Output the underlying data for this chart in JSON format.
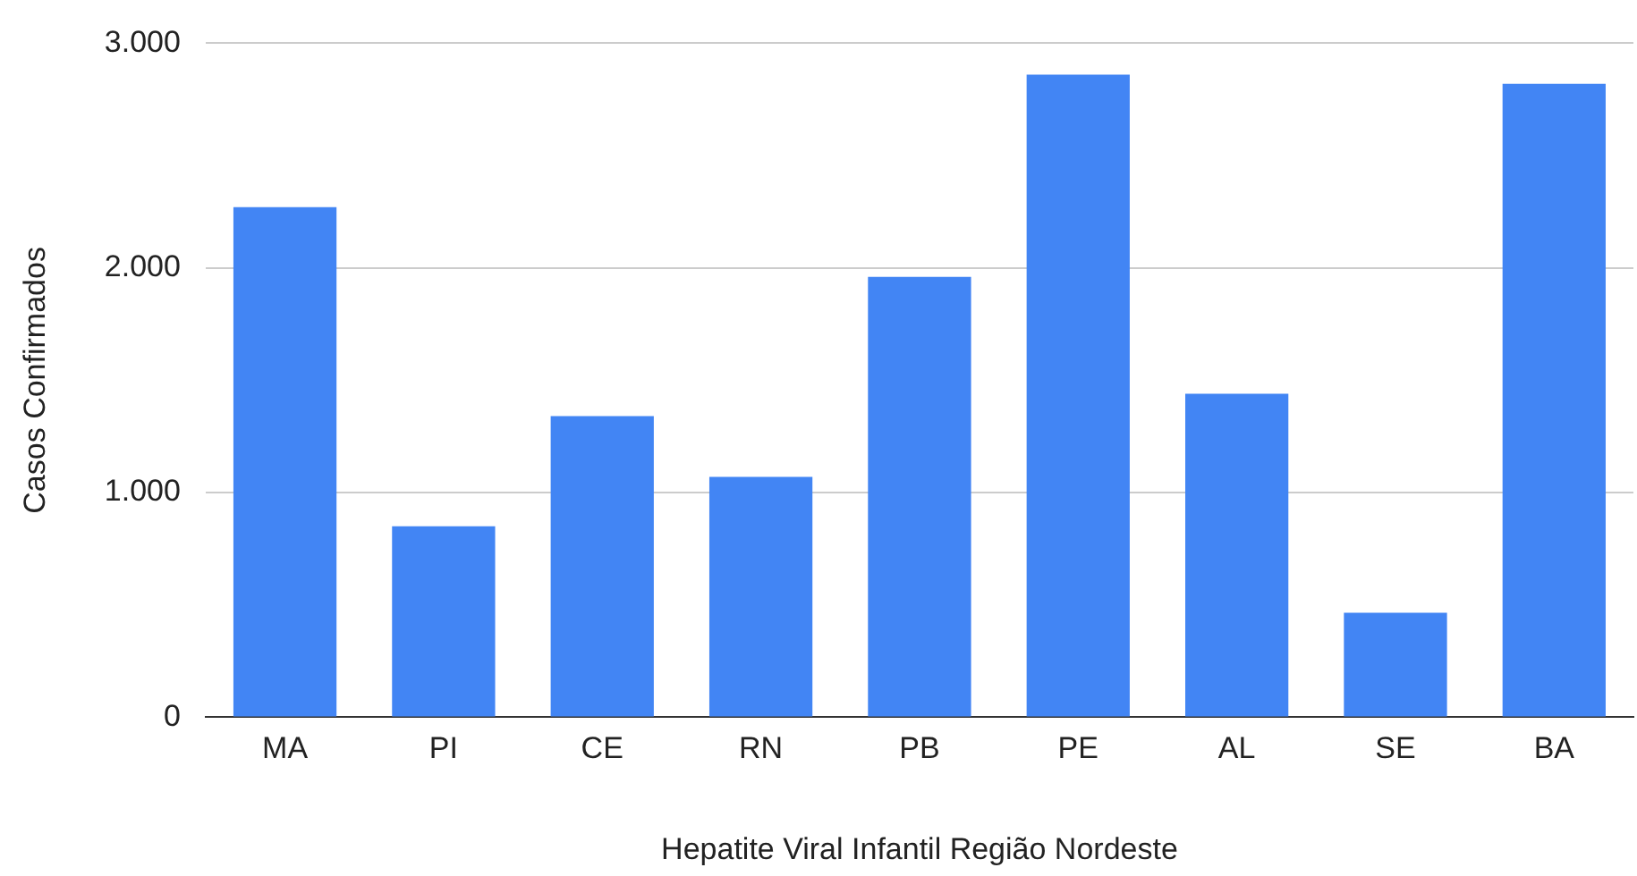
{
  "chart_data": {
    "type": "bar",
    "xlabel": "Hepatite Viral Infantil Região Nordeste",
    "ylabel": "Casos Confirmados",
    "categories": [
      "MA",
      "PI",
      "CE",
      "RN",
      "PB",
      "PE",
      "AL",
      "SE",
      "BA"
    ],
    "values": [
      2270,
      850,
      1340,
      1070,
      1960,
      2860,
      1440,
      465,
      2820
    ],
    "color": "#4285f4",
    "ylim": [
      0,
      3000
    ],
    "yticks": [
      {
        "value": 0,
        "label": "0"
      },
      {
        "value": 1000,
        "label": "1.000"
      },
      {
        "value": 2000,
        "label": "2.000"
      },
      {
        "value": 3000,
        "label": "3.000"
      }
    ],
    "grid": "y",
    "legend": false
  }
}
